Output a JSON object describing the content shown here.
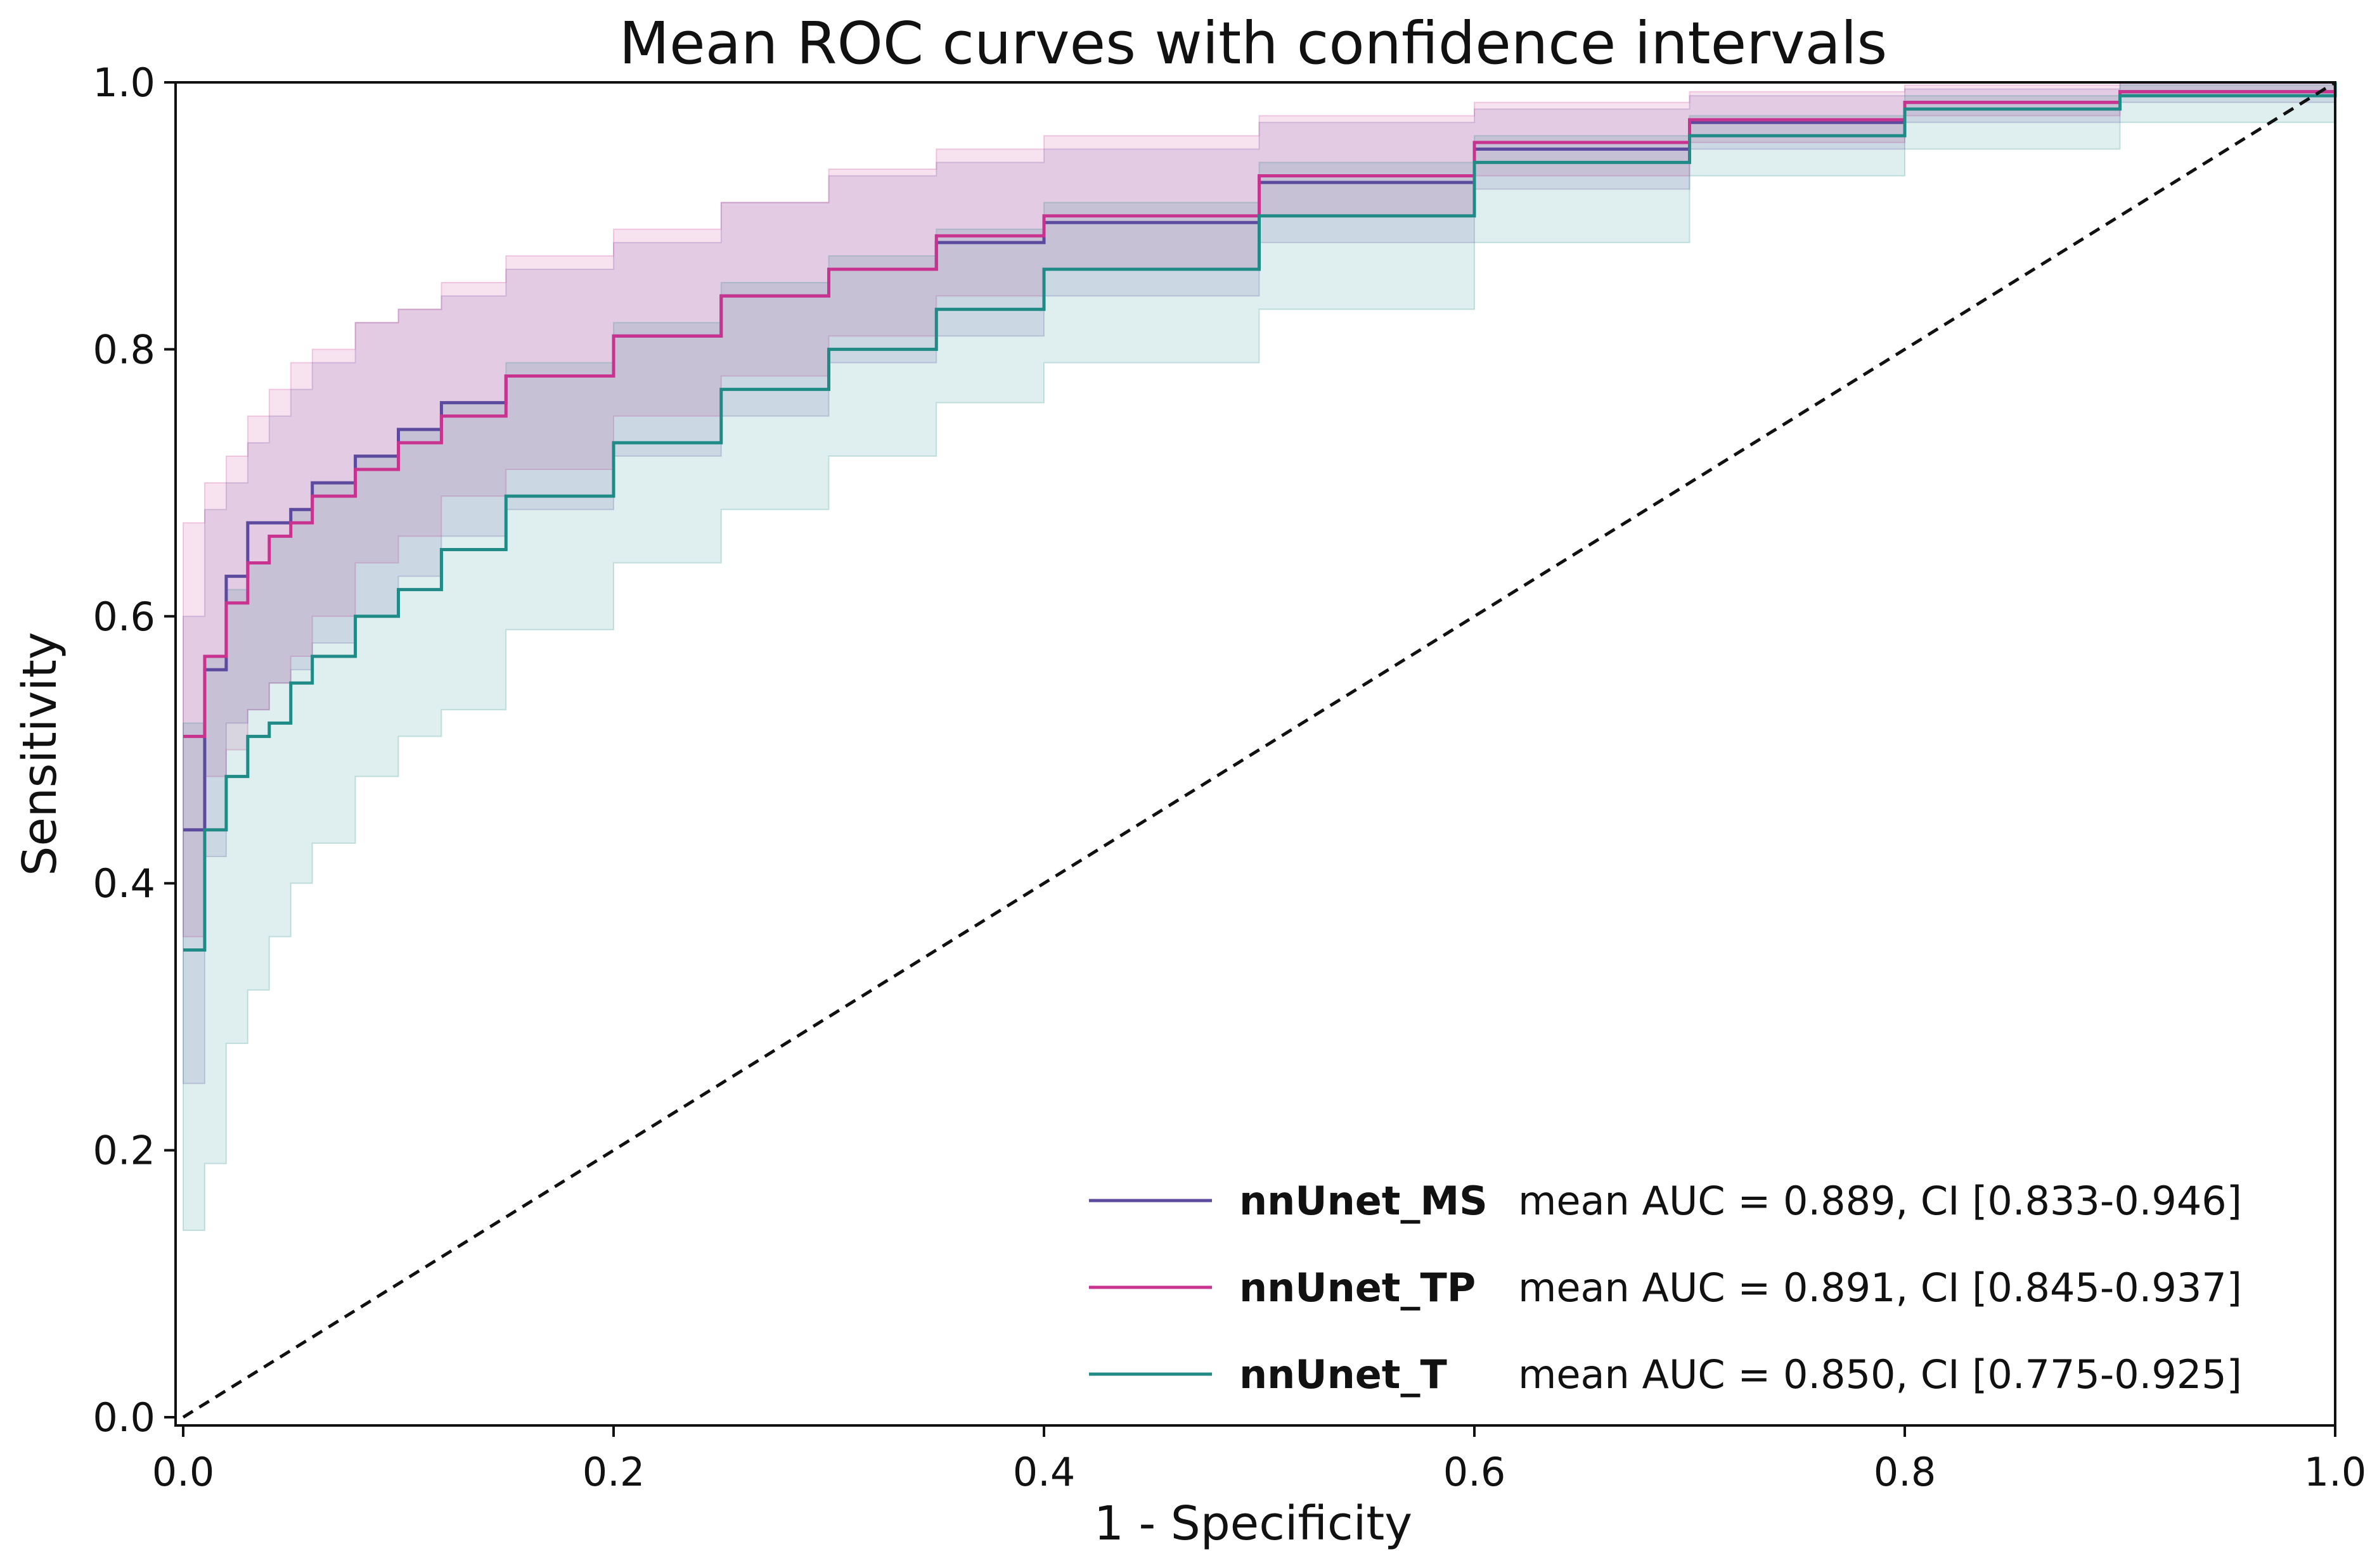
{
  "chart_data": {
    "type": "line",
    "title": "Mean ROC curves with confidence intervals",
    "xlabel": "1 - Specificity",
    "ylabel": "Sensitivity",
    "xlim": [
      0.0,
      1.0
    ],
    "ylim": [
      0.0,
      1.0
    ],
    "x_ticks": [
      "0.0",
      "0.2",
      "0.4",
      "0.6",
      "0.8",
      "1.0"
    ],
    "y_ticks": [
      "0.0",
      "0.2",
      "0.4",
      "0.6",
      "0.8",
      "1.0"
    ],
    "grid": false,
    "legend_position": "bottom-right",
    "x": [
      0.0,
      0.01,
      0.02,
      0.03,
      0.04,
      0.05,
      0.06,
      0.08,
      0.1,
      0.12,
      0.15,
      0.2,
      0.25,
      0.3,
      0.35,
      0.4,
      0.5,
      0.6,
      0.7,
      0.8,
      0.9,
      1.0
    ],
    "series": [
      {
        "name": "nnUnet_MS",
        "legend_text": "mean AUC = 0.889, CI [0.833-0.946]",
        "color": "#5b4a9e",
        "values": [
          0.44,
          0.56,
          0.63,
          0.67,
          0.67,
          0.68,
          0.7,
          0.72,
          0.74,
          0.76,
          0.78,
          0.81,
          0.84,
          0.86,
          0.88,
          0.895,
          0.925,
          0.95,
          0.97,
          0.985,
          0.993,
          1.0
        ],
        "ci_lower": [
          0.25,
          0.42,
          0.52,
          0.53,
          0.55,
          0.56,
          0.58,
          0.6,
          0.63,
          0.66,
          0.68,
          0.72,
          0.75,
          0.79,
          0.81,
          0.84,
          0.88,
          0.92,
          0.95,
          0.97,
          0.985,
          1.0
        ],
        "ci_upper": [
          0.6,
          0.68,
          0.7,
          0.73,
          0.75,
          0.77,
          0.79,
          0.82,
          0.83,
          0.84,
          0.86,
          0.88,
          0.91,
          0.93,
          0.94,
          0.95,
          0.97,
          0.98,
          0.99,
          0.995,
          1.0,
          1.0
        ]
      },
      {
        "name": "nnUnet_TP",
        "legend_text": "mean AUC = 0.891, CI [0.845-0.937]",
        "color": "#c8338f",
        "values": [
          0.51,
          0.57,
          0.61,
          0.64,
          0.66,
          0.67,
          0.69,
          0.71,
          0.73,
          0.75,
          0.78,
          0.81,
          0.84,
          0.86,
          0.885,
          0.9,
          0.93,
          0.955,
          0.972,
          0.985,
          0.993,
          1.0
        ],
        "ci_lower": [
          0.36,
          0.48,
          0.5,
          0.53,
          0.55,
          0.57,
          0.6,
          0.64,
          0.66,
          0.69,
          0.71,
          0.75,
          0.78,
          0.81,
          0.84,
          0.86,
          0.9,
          0.93,
          0.955,
          0.975,
          0.99,
          1.0
        ],
        "ci_upper": [
          0.67,
          0.7,
          0.72,
          0.75,
          0.77,
          0.79,
          0.8,
          0.82,
          0.83,
          0.85,
          0.87,
          0.89,
          0.91,
          0.935,
          0.95,
          0.96,
          0.975,
          0.985,
          0.993,
          0.998,
          1.0,
          1.0
        ]
      },
      {
        "name": "nnUnet_T",
        "legend_text": "mean AUC = 0.850, CI [0.775-0.925]",
        "color": "#1f8a86",
        "values": [
          0.35,
          0.44,
          0.48,
          0.51,
          0.52,
          0.55,
          0.57,
          0.6,
          0.62,
          0.65,
          0.69,
          0.73,
          0.77,
          0.8,
          0.83,
          0.86,
          0.9,
          0.94,
          0.96,
          0.98,
          0.99,
          1.0
        ],
        "ci_lower": [
          0.14,
          0.19,
          0.28,
          0.32,
          0.36,
          0.4,
          0.43,
          0.48,
          0.51,
          0.53,
          0.59,
          0.64,
          0.68,
          0.72,
          0.76,
          0.79,
          0.83,
          0.88,
          0.93,
          0.95,
          0.97,
          1.0
        ],
        "ci_upper": [
          0.52,
          0.57,
          0.62,
          0.64,
          0.66,
          0.68,
          0.7,
          0.72,
          0.74,
          0.76,
          0.79,
          0.82,
          0.85,
          0.87,
          0.89,
          0.91,
          0.94,
          0.96,
          0.975,
          0.99,
          0.998,
          1.0
        ]
      }
    ],
    "reference_line": {
      "x": [
        0,
        1
      ],
      "y": [
        0,
        1
      ],
      "style": "dashed",
      "color": "#111111"
    }
  }
}
